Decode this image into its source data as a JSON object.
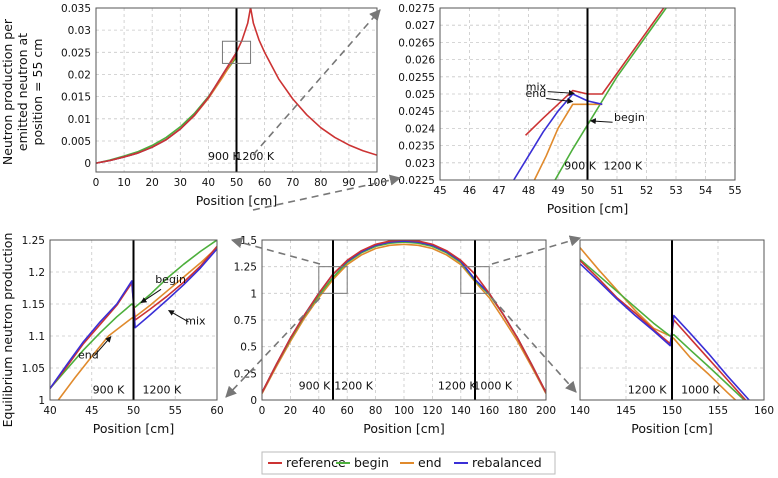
{
  "y_label_top": [
    "Neutron production per",
    "emitted neutron at",
    "position = 55 cm"
  ],
  "y_label_bottom": "Equilibrium neutron production",
  "legend": [
    {
      "label": "reference",
      "color": "#cc3333"
    },
    {
      "label": "begin",
      "color": "#4daf3c"
    },
    {
      "label": "end",
      "color": "#e08a2c"
    },
    {
      "label": "rebalanced",
      "color": "#3a2fd6"
    }
  ],
  "chart_data": [
    {
      "id": "A",
      "type": "line",
      "xlabel": "Position [cm]",
      "xlim": [
        0,
        100
      ],
      "ylim": [
        -0.002,
        0.035
      ],
      "xticks": [
        0,
        10,
        20,
        30,
        40,
        50,
        60,
        70,
        80,
        90,
        100
      ],
      "yticks": [
        0,
        0.005,
        0.01,
        0.015,
        0.02,
        0.025,
        0.03,
        0.035
      ],
      "ytick_labels": [
        "0",
        "0.005",
        "0.01",
        "0.015",
        "0.02",
        "0.025",
        "0.03",
        "0.035"
      ],
      "vlines": [
        50
      ],
      "annotations": [
        {
          "text": "900 K",
          "x": 45.5,
          "y": 0.0002,
          "anchor": "middle"
        },
        {
          "text": "1200 K",
          "x": 56.5,
          "y": 0.0002,
          "anchor": "middle"
        }
      ],
      "zoom_box": {
        "x": [
          45,
          55
        ],
        "y": [
          0.0225,
          0.0275
        ]
      },
      "series": [
        {
          "name": "reference",
          "x": [
            0,
            5,
            10,
            15,
            20,
            25,
            30,
            35,
            40,
            45,
            50,
            52,
            54,
            55,
            56,
            58,
            60,
            65,
            70,
            75,
            80,
            85,
            90,
            95,
            100
          ],
          "y": [
            0,
            0.0006,
            0.0014,
            0.0023,
            0.0036,
            0.0053,
            0.0077,
            0.0108,
            0.0148,
            0.0199,
            0.025,
            0.0278,
            0.0316,
            0.0351,
            0.0316,
            0.0278,
            0.025,
            0.019,
            0.0145,
            0.0109,
            0.008,
            0.0058,
            0.0041,
            0.0028,
            0.0018
          ]
        },
        {
          "name": "begin",
          "x": [
            0,
            5,
            10,
            15,
            20,
            25,
            30,
            35,
            40,
            45,
            50
          ],
          "y": [
            0,
            0.0007,
            0.0016,
            0.0026,
            0.004,
            0.0058,
            0.0082,
            0.0112,
            0.015,
            0.0196,
            0.0239
          ]
        },
        {
          "name": "end",
          "x": [
            0,
            5,
            10,
            15,
            20,
            25,
            30,
            35,
            40,
            45,
            50
          ],
          "y": [
            0,
            0.0006,
            0.0014,
            0.0023,
            0.0036,
            0.0053,
            0.0077,
            0.0107,
            0.0146,
            0.0193,
            0.0245
          ]
        },
        {
          "name": "rebalanced",
          "x": [
            0,
            5,
            10,
            15,
            20,
            25,
            30,
            35,
            40,
            45,
            50
          ],
          "y": [
            0,
            0.0006,
            0.0014,
            0.0023,
            0.0036,
            0.0053,
            0.0077,
            0.0108,
            0.0148,
            0.0199,
            0.0249
          ]
        }
      ]
    },
    {
      "id": "B",
      "type": "line",
      "xlabel": "Position [cm]",
      "xlim": [
        45,
        55
      ],
      "ylim": [
        0.0225,
        0.0275
      ],
      "xticks": [
        45,
        46,
        47,
        48,
        49,
        50,
        51,
        52,
        53,
        54,
        55
      ],
      "yticks": [
        0.0225,
        0.023,
        0.0235,
        0.024,
        0.0245,
        0.025,
        0.0255,
        0.026,
        0.0265,
        0.027,
        0.0275
      ],
      "ytick_labels": [
        "0.0225",
        "0.023",
        "0.0235",
        "0.024",
        "0.0245",
        "0.025",
        "0.0255",
        "0.026",
        "0.0265",
        "0.027",
        "0.0275"
      ],
      "vlines": [
        50
      ],
      "annotations": [
        {
          "text": "900 K",
          "x": 49.75,
          "y": 0.02275,
          "anchor": "middle"
        },
        {
          "text": "1200 K",
          "x": 51.2,
          "y": 0.02275,
          "anchor": "middle"
        },
        {
          "text": "mix",
          "x": 48.25,
          "y": 0.02505,
          "anchor": "middle"
        },
        {
          "text": "end",
          "x": 48.25,
          "y": 0.02485,
          "anchor": "middle"
        },
        {
          "text": "begin",
          "x": 50.9,
          "y": 0.02415,
          "anchor": "start"
        }
      ],
      "arrows": [
        {
          "from": [
            48.65,
            0.02507
          ],
          "to": [
            49.55,
            0.02502
          ]
        },
        {
          "from": [
            48.6,
            0.02487
          ],
          "to": [
            49.5,
            0.02478
          ]
        },
        {
          "from": [
            50.85,
            0.02418
          ],
          "to": [
            50.1,
            0.02422
          ]
        }
      ],
      "series": [
        {
          "name": "reference",
          "x": [
            47.9,
            48.5,
            49.0,
            49.5,
            50.0,
            50.5,
            51.0,
            51.5,
            52.0,
            52.5,
            53.0
          ],
          "y": [
            0.0238,
            0.0243,
            0.0247,
            0.0251,
            0.025,
            0.025,
            0.0256,
            0.0262,
            0.0268,
            0.0274,
            0.028
          ]
        },
        {
          "name": "rebalanced",
          "x": [
            47.5,
            48.0,
            48.5,
            49.0,
            49.5,
            50.0,
            50.5
          ],
          "y": [
            0.0225,
            0.0232,
            0.0239,
            0.0245,
            0.025,
            0.0248,
            0.0247
          ]
        },
        {
          "name": "end",
          "x": [
            48.2,
            48.6,
            49.0,
            49.5,
            50.0,
            50.5
          ],
          "y": [
            0.0225,
            0.0232,
            0.024,
            0.0247,
            0.0247,
            0.0247
          ]
        },
        {
          "name": "begin",
          "x": [
            48.9,
            49.5,
            50.0,
            50.5,
            51.0,
            51.5,
            52.0,
            52.5,
            53.0
          ],
          "y": [
            0.0225,
            0.0234,
            0.0241,
            0.0248,
            0.0255,
            0.0261,
            0.0267,
            0.0273,
            0.0279
          ]
        }
      ]
    },
    {
      "id": "C",
      "type": "line",
      "xlabel": "Position [cm]",
      "xlim": [
        40,
        60
      ],
      "ylim": [
        1.0,
        1.25
      ],
      "xticks": [
        40,
        45,
        50,
        55,
        60
      ],
      "yticks": [
        1,
        1.05,
        1.1,
        1.15,
        1.2,
        1.25
      ],
      "ytick_labels": [
        "1",
        "1.05",
        "1.1",
        "1.15",
        "1.2",
        "1.25"
      ],
      "vlines": [
        50
      ],
      "annotations": [
        {
          "text": "900 K",
          "x": 47.0,
          "y": 1.007,
          "anchor": "middle"
        },
        {
          "text": "1200 K",
          "x": 53.4,
          "y": 1.007,
          "anchor": "middle"
        },
        {
          "text": "begin",
          "x": 52.6,
          "y": 1.18,
          "anchor": "start"
        },
        {
          "text": "mix",
          "x": 56.2,
          "y": 1.115,
          "anchor": "start"
        },
        {
          "text": "end",
          "x": 44.6,
          "y": 1.062,
          "anchor": "middle"
        }
      ],
      "arrows": [
        {
          "from": [
            53.3,
            1.173
          ],
          "to": [
            50.9,
            1.152
          ]
        },
        {
          "from": [
            56.6,
            1.122
          ],
          "to": [
            54.2,
            1.14
          ]
        },
        {
          "from": [
            45.3,
            1.069
          ],
          "to": [
            47.3,
            1.099
          ]
        }
      ],
      "series": [
        {
          "name": "reference",
          "x": [
            40,
            42,
            44,
            46,
            48,
            49.8,
            50.2,
            52,
            54,
            56,
            58,
            60
          ],
          "y": [
            1.018,
            1.052,
            1.088,
            1.118,
            1.148,
            1.183,
            1.125,
            1.142,
            1.162,
            1.184,
            1.209,
            1.24
          ]
        },
        {
          "name": "begin",
          "x": [
            40,
            42,
            44,
            46,
            48,
            49.8,
            50.2,
            52,
            54,
            56,
            58,
            60
          ],
          "y": [
            1.018,
            1.048,
            1.078,
            1.105,
            1.13,
            1.15,
            1.145,
            1.165,
            1.19,
            1.212,
            1.232,
            1.25
          ]
        },
        {
          "name": "end",
          "x": [
            40,
            41,
            43,
            45,
            47,
            49.8,
            50.2,
            52,
            54,
            56,
            58,
            60
          ],
          "y": [
            0.985,
            1.0,
            1.035,
            1.068,
            1.1,
            1.128,
            1.13,
            1.148,
            1.17,
            1.192,
            1.214,
            1.238
          ]
        },
        {
          "name": "rebalanced",
          "x": [
            40,
            42,
            44,
            46,
            48,
            49.8,
            50.2,
            52,
            54,
            56,
            58,
            60
          ],
          "y": [
            1.018,
            1.055,
            1.091,
            1.122,
            1.15,
            1.186,
            1.113,
            1.133,
            1.156,
            1.18,
            1.206,
            1.236
          ]
        }
      ]
    },
    {
      "id": "D",
      "type": "line",
      "xlabel": "Position [cm]",
      "xlim": [
        0,
        200
      ],
      "ylim": [
        0,
        1.5
      ],
      "xticks": [
        0,
        20,
        40,
        60,
        80,
        100,
        120,
        140,
        160,
        180,
        200
      ],
      "yticks": [
        0,
        0.25,
        0.5,
        0.75,
        1,
        1.25,
        1.5
      ],
      "ytick_labels": [
        "0",
        "0.25",
        "0.5",
        "0.75",
        "1",
        "1.25",
        "1.5"
      ],
      "vlines": [
        50,
        150
      ],
      "annotations": [
        {
          "text": "900 K",
          "x": 37.0,
          "y": 0.08,
          "anchor": "middle"
        },
        {
          "text": "1200 K",
          "x": 64.5,
          "y": 0.08,
          "anchor": "middle"
        },
        {
          "text": "1200 K",
          "x": 137.5,
          "y": 0.08,
          "anchor": "middle",
          "small": true
        },
        {
          "text": "1000 K",
          "x": 162.5,
          "y": 0.08,
          "anchor": "middle"
        }
      ],
      "zoom_boxes": [
        {
          "x": [
            40,
            60
          ],
          "y": [
            1.0,
            1.25
          ]
        },
        {
          "x": [
            140,
            160
          ],
          "y": [
            1.0,
            1.25
          ]
        }
      ],
      "series": [
        {
          "name": "reference",
          "x": [
            0,
            10,
            20,
            30,
            40,
            50,
            60,
            70,
            80,
            90,
            100,
            110,
            120,
            130,
            140,
            150,
            160,
            170,
            180,
            190,
            200
          ],
          "y": [
            0.07,
            0.33,
            0.58,
            0.8,
            1.0,
            1.18,
            1.31,
            1.4,
            1.46,
            1.49,
            1.5,
            1.49,
            1.46,
            1.4,
            1.31,
            1.18,
            1.0,
            0.8,
            0.58,
            0.33,
            0.07
          ]
        },
        {
          "name": "begin",
          "x": [
            0,
            10,
            20,
            30,
            40,
            50,
            60,
            70,
            80,
            90,
            100,
            110,
            120,
            130,
            140,
            150,
            160,
            170,
            180,
            190,
            200
          ],
          "y": [
            0.07,
            0.33,
            0.57,
            0.79,
            0.98,
            1.15,
            1.29,
            1.38,
            1.44,
            1.47,
            1.48,
            1.47,
            1.44,
            1.38,
            1.29,
            1.12,
            0.99,
            0.8,
            0.58,
            0.33,
            0.07
          ]
        },
        {
          "name": "end",
          "x": [
            0,
            10,
            20,
            30,
            40,
            50,
            60,
            70,
            80,
            90,
            100,
            110,
            120,
            130,
            140,
            150,
            160,
            170,
            180,
            190,
            200
          ],
          "y": [
            0.06,
            0.31,
            0.55,
            0.77,
            0.96,
            1.13,
            1.27,
            1.36,
            1.42,
            1.45,
            1.46,
            1.45,
            1.42,
            1.36,
            1.27,
            1.11,
            0.96,
            0.76,
            0.55,
            0.31,
            0.06
          ]
        },
        {
          "name": "rebalanced",
          "x": [
            0,
            10,
            20,
            30,
            40,
            50,
            60,
            70,
            80,
            90,
            100,
            110,
            120,
            130,
            140,
            150,
            160,
            170,
            180,
            190,
            200
          ],
          "y": [
            0.07,
            0.33,
            0.58,
            0.8,
            1.0,
            1.18,
            1.3,
            1.39,
            1.45,
            1.48,
            1.49,
            1.48,
            1.45,
            1.39,
            1.3,
            1.13,
            1.0,
            0.8,
            0.58,
            0.33,
            0.07
          ]
        }
      ]
    },
    {
      "id": "E",
      "type": "line",
      "xlabel": "Position [cm]",
      "xlim": [
        140,
        160
      ],
      "ylim": [
        1.0,
        1.25
      ],
      "xticks": [
        140,
        145,
        150,
        155,
        160
      ],
      "yticks": [
        1,
        1.05,
        1.1,
        1.15,
        1.2,
        1.25
      ],
      "ytick_labels": [],
      "vlines": [
        150
      ],
      "annotations": [
        {
          "text": "1200 K",
          "x": 147.3,
          "y": 1.007,
          "anchor": "middle"
        },
        {
          "text": "1000 K",
          "x": 153.1,
          "y": 1.007,
          "anchor": "middle"
        }
      ],
      "series": [
        {
          "name": "reference",
          "x": [
            140,
            142,
            144,
            146,
            148,
            149.8,
            150.2,
            152,
            154,
            156,
            158
          ],
          "y": [
            1.218,
            1.19,
            1.16,
            1.136,
            1.11,
            1.088,
            1.125,
            1.096,
            1.064,
            1.032,
            1.0
          ]
        },
        {
          "name": "begin",
          "x": [
            140,
            142,
            144,
            146,
            148,
            149.8,
            150.2,
            152,
            154,
            156,
            158
          ],
          "y": [
            1.22,
            1.195,
            1.17,
            1.145,
            1.12,
            1.1,
            1.102,
            1.078,
            1.052,
            1.025,
            0.998
          ]
        },
        {
          "name": "end",
          "x": [
            140,
            142,
            144,
            146,
            148,
            149.8,
            150.2,
            152,
            154,
            156,
            157.5
          ],
          "y": [
            1.238,
            1.204,
            1.172,
            1.14,
            1.112,
            1.1,
            1.096,
            1.066,
            1.04,
            1.012,
            0.992
          ]
        },
        {
          "name": "rebalanced",
          "x": [
            140,
            142,
            144,
            146,
            148,
            149.8,
            150.2,
            152,
            154,
            156,
            158.5
          ],
          "y": [
            1.213,
            1.186,
            1.158,
            1.132,
            1.108,
            1.085,
            1.132,
            1.104,
            1.072,
            1.038,
            0.998
          ]
        }
      ]
    }
  ]
}
